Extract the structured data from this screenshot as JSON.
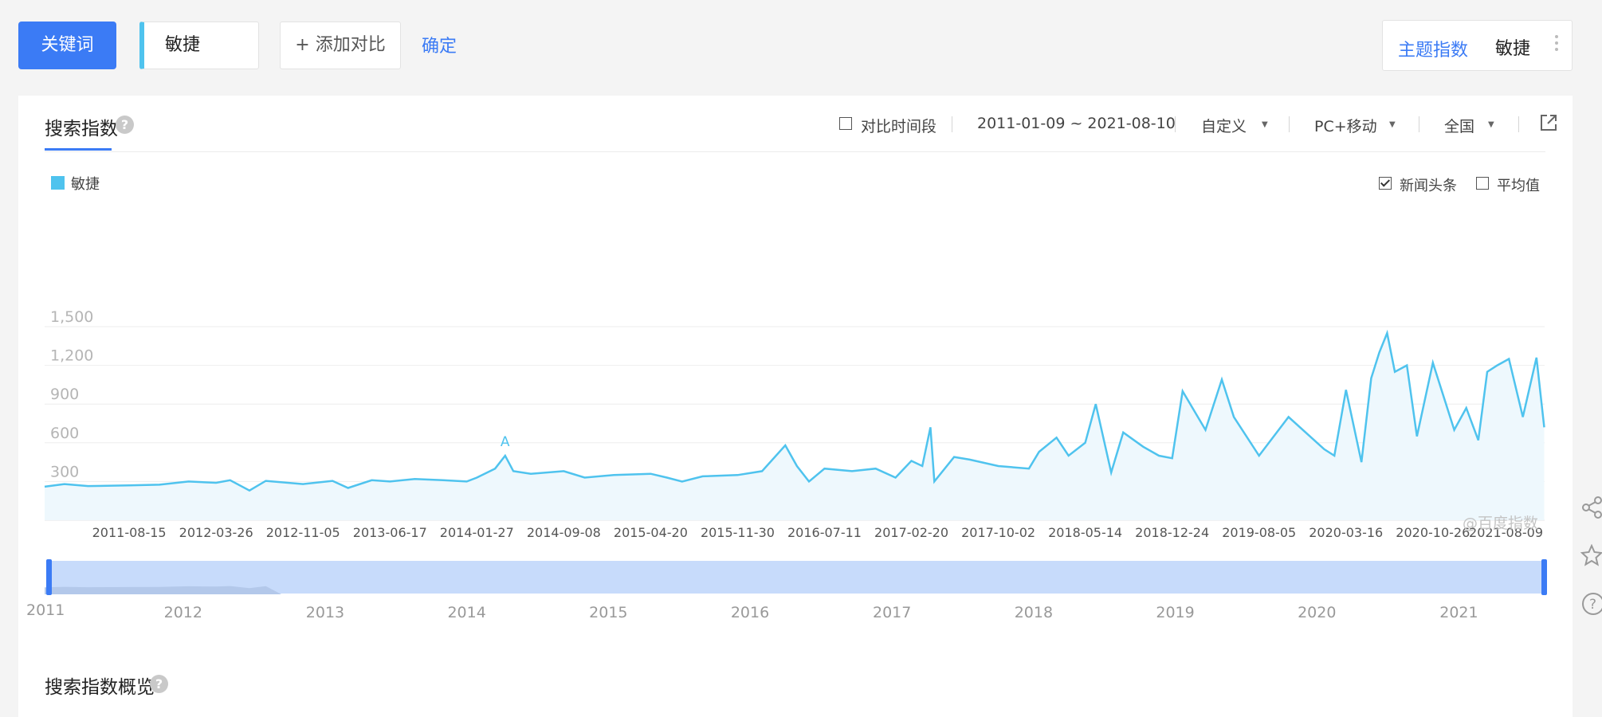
{
  "toolbar": {
    "keyword_button": "关键词",
    "keyword_value": "敏捷",
    "add_compare": "+ 添加对比",
    "confirm": "确定",
    "topic_label": "主题指数",
    "topic_value": "敏捷"
  },
  "panel": {
    "tab_title": "搜索指数",
    "compare_period": "对比时间段",
    "date_range": "2011-01-09 ~ 2021-08-10",
    "custom": "自定义",
    "device": "PC+移动",
    "region": "全国",
    "legend": "敏捷",
    "news_label": "新闻头条",
    "avg_label": "平均值",
    "watermark": "@百度指数",
    "annotation": "A",
    "overview_title": "搜索指数概览"
  },
  "chart_data": {
    "type": "area",
    "series": [
      {
        "name": "敏捷",
        "color": "#4fc3ee",
        "x": [
          "2011-01-09",
          "2011-03-01",
          "2011-05-01",
          "2011-08-15",
          "2011-11-01",
          "2012-01-15",
          "2012-03-26",
          "2012-05-01",
          "2012-06-20",
          "2012-08-01",
          "2012-11-05",
          "2013-01-20",
          "2013-03-01",
          "2013-05-01",
          "2013-06-17",
          "2013-08-20",
          "2013-11-01",
          "2014-01-01",
          "2014-01-27",
          "2014-03-15",
          "2014-04-10",
          "2014-05-01",
          "2014-06-15",
          "2014-09-08",
          "2014-11-01",
          "2015-01-15",
          "2015-04-20",
          "2015-06-01",
          "2015-07-10",
          "2015-09-01",
          "2015-11-30",
          "2016-02-01",
          "2016-04-01",
          "2016-05-01",
          "2016-06-01",
          "2016-07-11",
          "2016-09-20",
          "2016-11-20",
          "2017-01-10",
          "2017-02-20",
          "2017-03-20",
          "2017-04-10",
          "2017-04-20",
          "2017-06-10",
          "2017-07-20",
          "2017-10-02",
          "2017-12-20",
          "2018-01-15",
          "2018-03-01",
          "2018-04-01",
          "2018-05-14",
          "2018-06-10",
          "2018-07-20",
          "2018-08-20",
          "2018-10-10",
          "2018-11-20",
          "2018-12-24",
          "2019-01-20",
          "2019-03-20",
          "2019-05-01",
          "2019-06-01",
          "2019-08-05",
          "2019-10-20",
          "2020-01-20",
          "2020-02-15",
          "2020-03-16",
          "2020-04-25",
          "2020-05-20",
          "2020-06-10",
          "2020-06-30",
          "2020-07-20",
          "2020-08-20",
          "2020-09-15",
          "2020-10-26",
          "2020-12-20",
          "2021-01-20",
          "2021-02-20",
          "2021-03-15",
          "2021-04-10",
          "2021-05-10",
          "2021-06-15",
          "2021-07-20",
          "2021-08-09"
        ],
        "values": [
          260,
          280,
          265,
          270,
          275,
          300,
          290,
          310,
          230,
          305,
          280,
          305,
          250,
          310,
          300,
          320,
          310,
          300,
          330,
          400,
          500,
          380,
          360,
          380,
          330,
          350,
          360,
          330,
          300,
          340,
          350,
          380,
          580,
          420,
          300,
          400,
          380,
          400,
          330,
          460,
          420,
          720,
          300,
          490,
          470,
          420,
          400,
          530,
          640,
          500,
          600,
          900,
          370,
          680,
          570,
          500,
          480,
          1000,
          700,
          1090,
          800,
          500,
          800,
          550,
          500,
          1010,
          450,
          1100,
          1300,
          1450,
          1150,
          1200,
          650,
          1220,
          700,
          870,
          620,
          1150,
          1200,
          1250,
          800,
          1260,
          720
        ]
      }
    ],
    "x_tick_labels": [
      "2011-08-15",
      "2012-03-26",
      "2012-11-05",
      "2013-06-17",
      "2014-01-27",
      "2014-09-08",
      "2015-04-20",
      "2015-11-30",
      "2016-07-11",
      "2017-02-20",
      "2017-10-02",
      "2018-05-14",
      "2018-12-24",
      "2019-08-05",
      "2020-03-16",
      "2020-10-26",
      "2021-08-09"
    ],
    "y_tick_labels": [
      "300",
      "600",
      "900",
      "1,200",
      "1,500"
    ],
    "ylim": [
      0,
      1500
    ],
    "range_years": [
      "2011",
      "2012",
      "2013",
      "2014",
      "2015",
      "2016",
      "2017",
      "2018",
      "2019",
      "2020",
      "2021"
    ],
    "grid": true,
    "legend_position": "top-left"
  }
}
